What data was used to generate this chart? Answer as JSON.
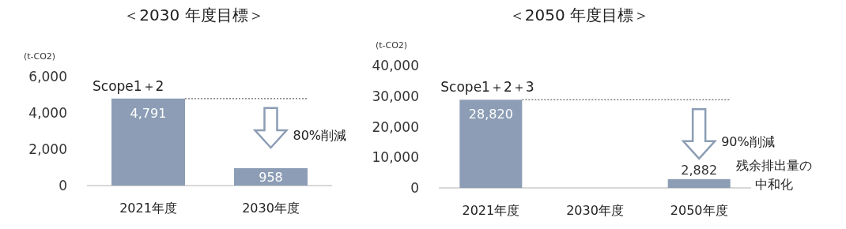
{
  "chart_data": [
    {
      "type": "bar",
      "title": "＜2030 年度目標＞",
      "ylabel": "(t-CO2)",
      "categories": [
        "2021年度",
        "2030年度"
      ],
      "values": [
        4791,
        958
      ],
      "value_labels": [
        "4,791",
        "958"
      ],
      "color": "#8c9db5",
      "ylim": [
        0,
        6000
      ],
      "yticks": [
        {
          "value": 0,
          "label": "0"
        },
        {
          "value": 2000,
          "label": "2,000"
        },
        {
          "value": 4000,
          "label": "4,000"
        },
        {
          "value": 6000,
          "label": "6,000"
        }
      ],
      "ref_lines": [
        {
          "axis": "y",
          "value": 4791,
          "color": "#666666",
          "line_style": "dotted"
        }
      ],
      "annotations": [
        {
          "text": "Scope1＋2",
          "x": "2021年度",
          "y": 4791
        },
        "80%削減"
      ]
    },
    {
      "type": "bar",
      "title": "＜2050 年度目標＞",
      "ylabel": "(t-CO2)",
      "categories": [
        "2021年度",
        "2030年度",
        "2050年度"
      ],
      "values": [
        28820,
        null,
        2882
      ],
      "value_labels": [
        "28,820",
        null,
        "2,882"
      ],
      "color": "#8c9db5",
      "ylim": [
        0,
        40000
      ],
      "yticks": [
        {
          "value": 0,
          "label": "0"
        },
        {
          "value": 10000,
          "label": "10,000"
        },
        {
          "value": 20000,
          "label": "20,000"
        },
        {
          "value": 30000,
          "label": "30,000"
        },
        {
          "value": 40000,
          "label": "40,000"
        }
      ],
      "ref_lines": [
        {
          "axis": "y",
          "value": 28820,
          "color": "#666666",
          "line_style": "dotted"
        }
      ],
      "annotations": [
        {
          "text": "Scope1＋2＋3",
          "x": "2021年度",
          "y": 28820
        },
        "90%削減",
        "残余排出量の中和化"
      ]
    }
  ]
}
